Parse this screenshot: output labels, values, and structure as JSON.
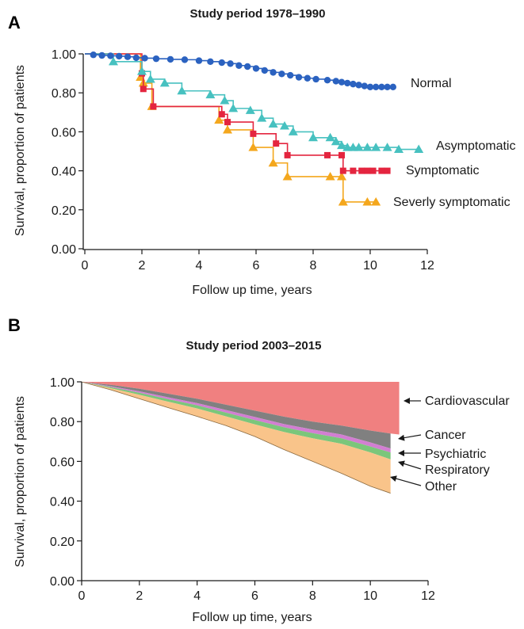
{
  "panels": {
    "a": {
      "letter": "A"
    },
    "b": {
      "letter": "B"
    }
  },
  "chart_data": [
    {
      "type": "line",
      "title": "Study period 1978–1990",
      "xlabel": "Follow up time, years",
      "ylabel": "Survival, proportion of patients",
      "xlim": [
        0,
        12
      ],
      "ylim": [
        0,
        1
      ],
      "x_ticks": [
        "0",
        "2",
        "4",
        "6",
        "8",
        "10",
        "12"
      ],
      "y_ticks": [
        "0.00",
        "0.20",
        "0.40",
        "0.60",
        "0.80",
        "1.00"
      ],
      "legend": "direct labels at right end of curves",
      "series": [
        {
          "name": "Normal",
          "color": "#2b62c0",
          "marker": "circle",
          "points": [
            [
              0,
              1.0
            ],
            [
              0.3,
              0.995
            ],
            [
              0.6,
              0.992
            ],
            [
              0.9,
              0.99
            ],
            [
              1.2,
              0.988
            ],
            [
              1.5,
              0.985
            ],
            [
              1.8,
              0.98
            ],
            [
              2.1,
              0.978
            ],
            [
              2.5,
              0.975
            ],
            [
              3.0,
              0.972
            ],
            [
              3.5,
              0.97
            ],
            [
              4.0,
              0.965
            ],
            [
              4.4,
              0.96
            ],
            [
              4.8,
              0.955
            ],
            [
              5.1,
              0.95
            ],
            [
              5.4,
              0.94
            ],
            [
              5.7,
              0.935
            ],
            [
              6.0,
              0.925
            ],
            [
              6.3,
              0.915
            ],
            [
              6.6,
              0.905
            ],
            [
              6.9,
              0.897
            ],
            [
              7.2,
              0.89
            ],
            [
              7.5,
              0.88
            ],
            [
              7.8,
              0.875
            ],
            [
              8.1,
              0.87
            ],
            [
              8.5,
              0.865
            ],
            [
              8.8,
              0.86
            ],
            [
              9.0,
              0.855
            ],
            [
              9.2,
              0.85
            ],
            [
              9.4,
              0.845
            ],
            [
              9.6,
              0.84
            ],
            [
              9.8,
              0.835
            ],
            [
              10.0,
              0.83
            ],
            [
              10.2,
              0.83
            ],
            [
              10.4,
              0.83
            ],
            [
              10.6,
              0.83
            ],
            [
              10.8,
              0.83
            ]
          ]
        },
        {
          "name": "Asymptomatic",
          "color": "#47c1c0",
          "marker": "triangle",
          "points": [
            [
              0,
              1.0
            ],
            [
              1.0,
              0.96
            ],
            [
              2.0,
              0.91
            ],
            [
              2.3,
              0.87
            ],
            [
              2.8,
              0.85
            ],
            [
              3.4,
              0.81
            ],
            [
              4.4,
              0.79
            ],
            [
              4.9,
              0.76
            ],
            [
              5.2,
              0.72
            ],
            [
              5.8,
              0.71
            ],
            [
              6.2,
              0.67
            ],
            [
              6.6,
              0.64
            ],
            [
              7.0,
              0.63
            ],
            [
              7.3,
              0.6
            ],
            [
              8.0,
              0.57
            ],
            [
              8.6,
              0.57
            ],
            [
              8.8,
              0.55
            ],
            [
              9.0,
              0.53
            ],
            [
              9.2,
              0.52
            ],
            [
              9.4,
              0.52
            ],
            [
              9.6,
              0.52
            ],
            [
              9.9,
              0.52
            ],
            [
              10.2,
              0.52
            ],
            [
              10.6,
              0.52
            ],
            [
              11.0,
              0.51
            ],
            [
              11.7,
              0.51
            ]
          ]
        },
        {
          "name": "Symptomatic",
          "color": "#e4253f",
          "marker": "square",
          "points": [
            [
              0,
              1.0
            ],
            [
              2.0,
              0.9
            ],
            [
              2.05,
              0.82
            ],
            [
              2.4,
              0.73
            ],
            [
              4.8,
              0.69
            ],
            [
              5.0,
              0.65
            ],
            [
              5.9,
              0.59
            ],
            [
              6.7,
              0.54
            ],
            [
              7.1,
              0.48
            ],
            [
              8.5,
              0.48
            ],
            [
              9.0,
              0.48
            ],
            [
              9.05,
              0.4
            ],
            [
              9.4,
              0.4
            ],
            [
              9.7,
              0.4
            ],
            [
              9.9,
              0.4
            ],
            [
              10.1,
              0.4
            ],
            [
              10.4,
              0.4
            ],
            [
              10.6,
              0.4
            ]
          ]
        },
        {
          "name": "Severly symptomatic",
          "color": "#f4a71d",
          "marker": "triangle",
          "points": [
            [
              0,
              1.0
            ],
            [
              1.95,
              0.88
            ],
            [
              2.05,
              0.85
            ],
            [
              2.35,
              0.73
            ],
            [
              4.7,
              0.66
            ],
            [
              5.0,
              0.61
            ],
            [
              5.9,
              0.52
            ],
            [
              6.6,
              0.44
            ],
            [
              7.1,
              0.37
            ],
            [
              8.6,
              0.37
            ],
            [
              9.0,
              0.37
            ],
            [
              9.05,
              0.24
            ],
            [
              9.9,
              0.24
            ],
            [
              10.2,
              0.24
            ]
          ]
        }
      ]
    },
    {
      "type": "area",
      "title": "Study period 2003–2015",
      "xlabel": "Follow up time, years",
      "ylabel": "Survival, proportion of patients",
      "xlim": [
        0,
        12
      ],
      "ylim": [
        0,
        1
      ],
      "x_ticks": [
        "0",
        "2",
        "4",
        "6",
        "8",
        "10",
        "12"
      ],
      "y_ticks": [
        "0.00",
        "0.20",
        "0.40",
        "0.60",
        "0.80",
        "1.00"
      ],
      "legend": "direct labels with arrows at right",
      "x": [
        0,
        1,
        2,
        3,
        4,
        5,
        6,
        7,
        8,
        9,
        10,
        10.7,
        11
      ],
      "boundaries": {
        "cardiovascular_lower": [
          1.0,
          0.985,
          0.965,
          0.94,
          0.915,
          0.885,
          0.855,
          0.825,
          0.8,
          0.78,
          0.755,
          0.74,
          0.735
        ],
        "cancer_lower": [
          1.0,
          0.978,
          0.952,
          0.922,
          0.893,
          0.858,
          0.823,
          0.788,
          0.76,
          0.735,
          0.695,
          0.665,
          null
        ],
        "psychiatric_lower": [
          1.0,
          0.974,
          0.945,
          0.913,
          0.882,
          0.845,
          0.808,
          0.772,
          0.742,
          0.716,
          0.675,
          0.645,
          null
        ],
        "respiratory_lower": [
          1.0,
          0.968,
          0.935,
          0.9,
          0.866,
          0.826,
          0.786,
          0.748,
          0.716,
          0.688,
          0.645,
          0.61,
          null
        ],
        "other_lower": [
          1.0,
          0.96,
          0.915,
          0.87,
          0.826,
          0.78,
          0.725,
          0.66,
          0.6,
          0.54,
          0.475,
          0.44,
          null
        ]
      },
      "series": [
        {
          "name": "Cardiovascular",
          "color": "#f08080"
        },
        {
          "name": "Cancer",
          "color": "#808080"
        },
        {
          "name": "Psychiatric",
          "color": "#d27ed2"
        },
        {
          "name": "Respiratory",
          "color": "#7bc67b"
        },
        {
          "name": "Other",
          "color": "#f9c48a"
        }
      ]
    }
  ]
}
